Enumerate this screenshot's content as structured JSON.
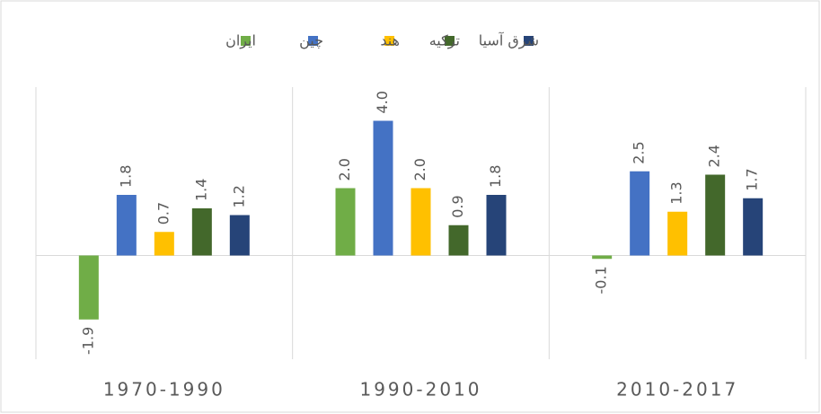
{
  "chart_data": {
    "type": "bar",
    "categories": [
      "1970-1990",
      "1990-2010",
      "2010-2017"
    ],
    "series": [
      {
        "name": "ایران",
        "color": "#70ad47",
        "values": [
          -1.9,
          2.0,
          -0.1
        ],
        "value_labels": [
          "-1.9",
          "2.0",
          "-0.1"
        ]
      },
      {
        "name": "چین",
        "color": "#4472c4",
        "values": [
          1.8,
          4.0,
          2.5
        ],
        "value_labels": [
          "1.8",
          "4.0",
          "2.5"
        ]
      },
      {
        "name": "هند",
        "color": "#ffc000",
        "values": [
          0.7,
          2.0,
          1.3
        ],
        "value_labels": [
          "0.7",
          "2.0",
          "1.3"
        ]
      },
      {
        "name": "ترکیه",
        "color": "#43682b",
        "values": [
          1.4,
          0.9,
          2.4
        ],
        "value_labels": [
          "1.4",
          "0.9",
          "2.4"
        ]
      },
      {
        "name": "شرق آسیا",
        "color": "#264478",
        "values": [
          1.2,
          1.8,
          1.7
        ],
        "value_labels": [
          "1.2",
          "1.8",
          "1.7"
        ]
      }
    ],
    "ylim": [
      -3,
      5
    ],
    "legend": "top"
  }
}
